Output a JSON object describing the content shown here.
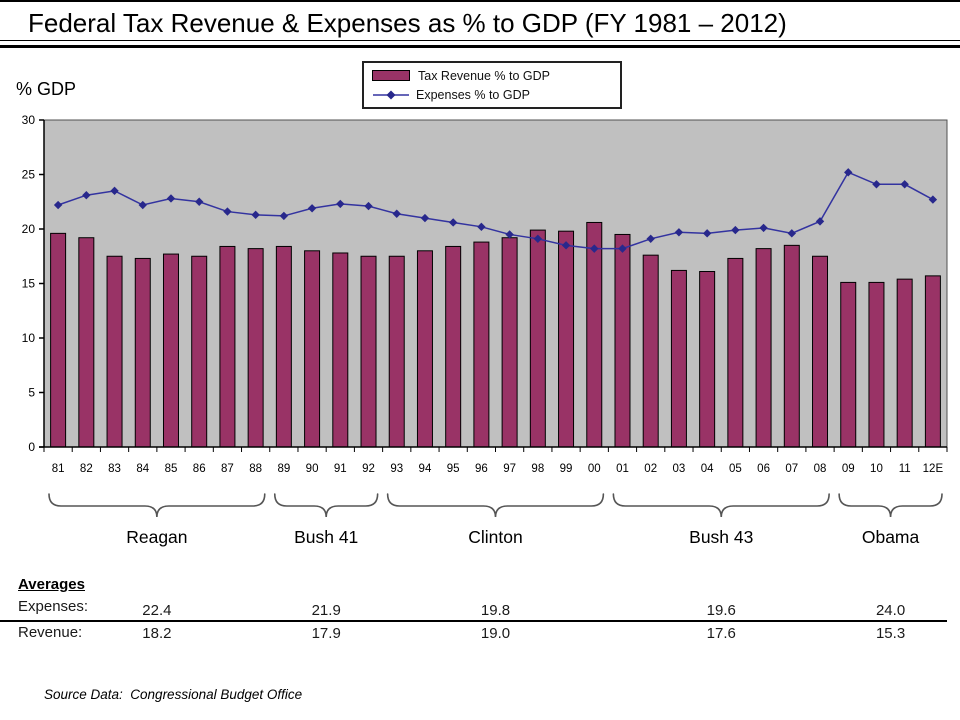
{
  "page": {
    "title": "Federal Tax Revenue & Expenses as % to GDP (FY 1981 – 2012)",
    "y_axis_label": "% GDP",
    "source_note": "Source Data:  Congressional Budget Office"
  },
  "legend": {
    "items": [
      {
        "label": "Tax Revenue % to GDP",
        "type": "bar",
        "color": "#993366"
      },
      {
        "label": "Expenses % to GDP",
        "type": "line",
        "color": "#3333A0"
      }
    ]
  },
  "chart_data": {
    "type": "bar",
    "title": "Federal Tax Revenue & Expenses as % to GDP (FY 1981 – 2012)",
    "xlabel": "",
    "ylabel": "% GDP",
    "ylim": [
      0,
      30
    ],
    "yticks": [
      0,
      5,
      10,
      15,
      20,
      25,
      30
    ],
    "grid": false,
    "plot_bg": "#C0C0C0",
    "legend_position": "top-center",
    "categories": [
      "81",
      "82",
      "83",
      "84",
      "85",
      "86",
      "87",
      "88",
      "89",
      "90",
      "91",
      "92",
      "93",
      "94",
      "95",
      "96",
      "97",
      "98",
      "99",
      "00",
      "01",
      "02",
      "03",
      "04",
      "05",
      "06",
      "07",
      "08",
      "09",
      "10",
      "11",
      "12E"
    ],
    "series": [
      {
        "name": "Tax Revenue % to GDP",
        "type": "bar",
        "color": "#993366",
        "values": [
          19.6,
          19.2,
          17.5,
          17.3,
          17.7,
          17.5,
          18.4,
          18.2,
          18.4,
          18.0,
          17.8,
          17.5,
          17.5,
          18.0,
          18.4,
          18.8,
          19.2,
          19.9,
          19.8,
          20.6,
          19.5,
          17.6,
          16.2,
          16.1,
          17.3,
          18.2,
          18.5,
          17.5,
          15.1,
          15.1,
          15.4,
          15.7
        ]
      },
      {
        "name": "Expenses % to GDP",
        "type": "line",
        "color": "#3333A0",
        "marker": "diamond",
        "values": [
          22.2,
          23.1,
          23.5,
          22.2,
          22.8,
          22.5,
          21.6,
          21.3,
          21.2,
          21.9,
          22.3,
          22.1,
          21.4,
          21.0,
          20.6,
          20.2,
          19.5,
          19.1,
          18.5,
          18.2,
          18.2,
          19.1,
          19.7,
          19.6,
          19.9,
          20.1,
          19.6,
          20.7,
          25.2,
          24.1,
          24.1,
          22.7
        ]
      }
    ]
  },
  "groups": [
    {
      "label": "Reagan",
      "start": "81",
      "end": "88",
      "avg_expenses": "22.4",
      "avg_revenue": "18.2"
    },
    {
      "label": "Bush 41",
      "start": "89",
      "end": "92",
      "avg_expenses": "21.9",
      "avg_revenue": "17.9"
    },
    {
      "label": "Clinton",
      "start": "93",
      "end": "00",
      "avg_expenses": "19.8",
      "avg_revenue": "19.0"
    },
    {
      "label": "Bush 43",
      "start": "01",
      "end": "08",
      "avg_expenses": "19.6",
      "avg_revenue": "17.6"
    },
    {
      "label": "Obama",
      "start": "09",
      "end": "12E",
      "avg_expenses": "24.0",
      "avg_revenue": "15.3"
    }
  ],
  "averages": {
    "heading": "Averages",
    "expenses_label": "Expenses:",
    "revenue_label": "Revenue:"
  }
}
